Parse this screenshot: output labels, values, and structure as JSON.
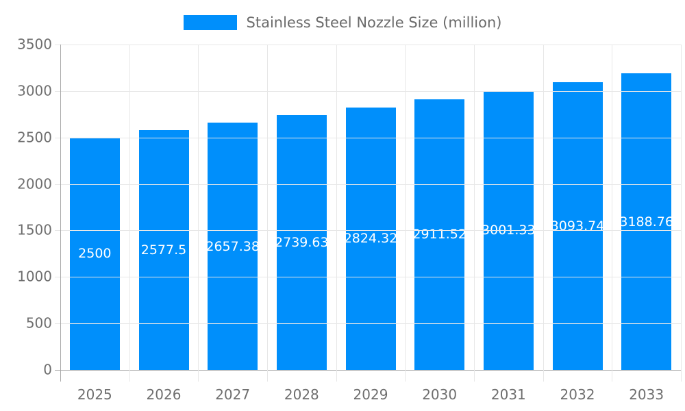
{
  "legend": {
    "label": "Stainless Steel Nozzle Size (million)"
  },
  "chart_data": {
    "type": "bar",
    "title": "Stainless Steel Nozzle Size (million)",
    "xlabel": "",
    "ylabel": "",
    "categories": [
      "2025",
      "2026",
      "2027",
      "2028",
      "2029",
      "2030",
      "2031",
      "2032",
      "2033"
    ],
    "values": [
      2500,
      2577.5,
      2657.38,
      2739.63,
      2824.32,
      2911.52,
      3001.33,
      3093.74,
      3188.76
    ],
    "bar_labels": [
      "2500",
      "2577.5",
      "2657.38",
      "2739.63",
      "2824.32",
      "2911.52",
      "3001.33",
      "3093.74",
      "3188.76"
    ],
    "ylim": [
      0,
      3500
    ],
    "y_ticks": [
      0,
      500,
      1000,
      1500,
      2000,
      2500,
      3000,
      3500
    ],
    "grid": true,
    "legend_position": "top",
    "colors": {
      "bar": "#008FFB",
      "axis_line": "#a8a8a8",
      "gridline": "#e7e7e7",
      "axis_label": "#6e6e6e",
      "legend_text": "#6b6b6b",
      "value_label": "#ffffff",
      "background": "#ffffff"
    }
  }
}
